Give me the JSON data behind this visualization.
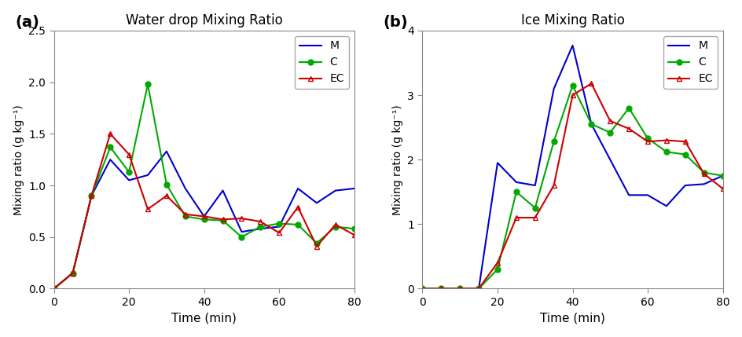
{
  "panel_a": {
    "title": "Water drop Mixing Ratio",
    "label": "(a)",
    "xlabel": "Time (min)",
    "ylabel": "Mixing ratio (g kg⁻¹)",
    "ylim": [
      0.0,
      2.5
    ],
    "xlim": [
      0,
      80
    ],
    "xticks": [
      0,
      20,
      40,
      60,
      80
    ],
    "yticks": [
      0.0,
      0.5,
      1.0,
      1.5,
      2.0,
      2.5
    ],
    "M": {
      "x": [
        0,
        5,
        10,
        15,
        20,
        25,
        30,
        35,
        40,
        45,
        50,
        55,
        60,
        65,
        70,
        75,
        80
      ],
      "y": [
        0.0,
        0.15,
        0.9,
        1.25,
        1.05,
        1.1,
        1.33,
        0.97,
        0.7,
        0.95,
        0.55,
        0.58,
        0.6,
        0.97,
        0.83,
        0.95,
        0.97
      ],
      "color": "#0000cc",
      "marker": "",
      "linestyle": "-"
    },
    "C": {
      "x": [
        0,
        5,
        10,
        15,
        20,
        25,
        30,
        35,
        40,
        45,
        50,
        55,
        60,
        65,
        70,
        75,
        80
      ],
      "y": [
        0.0,
        0.15,
        0.9,
        1.37,
        1.13,
        1.98,
        1.01,
        0.7,
        0.67,
        0.66,
        0.5,
        0.6,
        0.63,
        0.62,
        0.44,
        0.6,
        0.58
      ],
      "color": "#00aa00",
      "marker": "o",
      "linestyle": "-"
    },
    "EC": {
      "x": [
        0,
        5,
        10,
        15,
        20,
        25,
        30,
        35,
        40,
        45,
        50,
        55,
        60,
        65,
        70,
        75,
        80
      ],
      "y": [
        0.0,
        0.15,
        0.9,
        1.5,
        1.3,
        0.77,
        0.9,
        0.72,
        0.7,
        0.67,
        0.68,
        0.65,
        0.54,
        0.79,
        0.41,
        0.62,
        0.52
      ],
      "color": "#cc0000",
      "marker": "^",
      "linestyle": "-"
    }
  },
  "panel_b": {
    "title": "Ice Mixing Ratio",
    "label": "(b)",
    "xlabel": "Time (min)",
    "ylabel": "Mixing ratio (g kg⁻¹)",
    "ylim": [
      0.0,
      4.0
    ],
    "xlim": [
      0,
      80
    ],
    "xticks": [
      0,
      20,
      40,
      60,
      80
    ],
    "yticks": [
      0.0,
      1.0,
      2.0,
      3.0,
      4.0
    ],
    "M": {
      "x": [
        0,
        5,
        10,
        15,
        20,
        25,
        30,
        35,
        40,
        45,
        50,
        55,
        60,
        65,
        70,
        75,
        80
      ],
      "y": [
        0.0,
        0.0,
        0.0,
        0.0,
        1.95,
        1.65,
        1.6,
        3.1,
        3.77,
        2.55,
        2.0,
        1.45,
        1.45,
        1.28,
        1.6,
        1.62,
        1.75
      ],
      "color": "#0000cc",
      "marker": "",
      "linestyle": "-"
    },
    "C": {
      "x": [
        0,
        5,
        10,
        15,
        20,
        25,
        30,
        35,
        40,
        45,
        50,
        55,
        60,
        65,
        70,
        75,
        80
      ],
      "y": [
        0.0,
        0.0,
        0.0,
        0.0,
        0.3,
        1.5,
        1.25,
        2.28,
        3.15,
        2.55,
        2.42,
        2.8,
        2.33,
        2.12,
        2.08,
        1.8,
        1.75
      ],
      "color": "#00aa00",
      "marker": "o",
      "linestyle": "-"
    },
    "EC": {
      "x": [
        0,
        5,
        10,
        15,
        20,
        25,
        30,
        35,
        40,
        45,
        50,
        55,
        60,
        65,
        70,
        75,
        80
      ],
      "y": [
        0.0,
        0.0,
        0.0,
        0.0,
        0.4,
        1.1,
        1.1,
        1.6,
        3.0,
        3.18,
        2.6,
        2.48,
        2.28,
        2.3,
        2.28,
        1.78,
        1.55
      ],
      "color": "#cc0000",
      "marker": "^",
      "linestyle": "-"
    }
  }
}
